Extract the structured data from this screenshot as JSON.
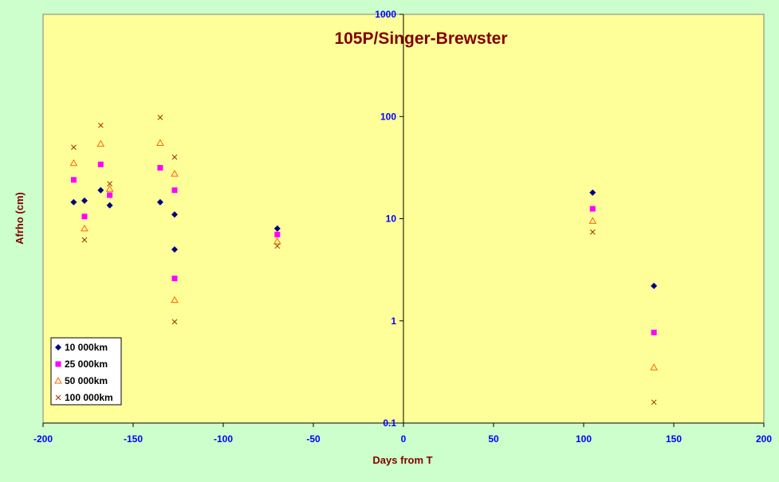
{
  "chart_data": {
    "type": "scatter",
    "title": "105P/Singer-Brewster",
    "xlabel": "Days from T",
    "ylabel": "Afrho (cm)",
    "xlim": [
      -200,
      200
    ],
    "ylim": [
      0.1,
      1000
    ],
    "yscale": "log",
    "x_ticks": [
      "-200",
      "-150",
      "-100",
      "-50",
      "0",
      "50",
      "100",
      "150",
      "200"
    ],
    "x_tick_values": [
      -200,
      -150,
      -100,
      -50,
      0,
      50,
      100,
      150,
      200
    ],
    "y_ticks": [
      "0.1",
      "1",
      "10",
      "100",
      "1000"
    ],
    "y_tick_values": [
      0.1,
      1,
      10,
      100,
      1000
    ],
    "grid": false,
    "legend_position": "bottom-left",
    "colors": {
      "plot_background": "#ffff99",
      "page_background": "#ccffcc",
      "title": "#800000",
      "axis_title": "#800000",
      "tick_label": "#0000ff"
    },
    "series": [
      {
        "name": "10 000km",
        "marker": "diamond",
        "color": "#000080",
        "points": [
          [
            -183,
            14.5
          ],
          [
            -177,
            15
          ],
          [
            -168,
            19
          ],
          [
            -163,
            13.5
          ],
          [
            -135,
            14.5
          ],
          [
            -127,
            11
          ],
          [
            -127,
            5
          ],
          [
            -70,
            8
          ],
          [
            105,
            18
          ],
          [
            139,
            2.2
          ]
        ]
      },
      {
        "name": "25 000km",
        "marker": "square",
        "color": "#ff00ff",
        "points": [
          [
            -183,
            24
          ],
          [
            -177,
            10.5
          ],
          [
            -168,
            34
          ],
          [
            -163,
            17
          ],
          [
            -135,
            31.5
          ],
          [
            -127,
            19
          ],
          [
            -127,
            2.6
          ],
          [
            -70,
            7
          ],
          [
            105,
            12.5
          ],
          [
            139,
            0.77
          ]
        ]
      },
      {
        "name": "50 000km",
        "marker": "triangle",
        "color": "#ff6600",
        "points": [
          [
            -183,
            35
          ],
          [
            -177,
            8
          ],
          [
            -168,
            54
          ],
          [
            -163,
            19.5
          ],
          [
            -135,
            55
          ],
          [
            -127,
            27.5
          ],
          [
            -127,
            1.6
          ],
          [
            -70,
            6
          ],
          [
            105,
            9.5
          ],
          [
            139,
            0.35
          ]
        ]
      },
      {
        "name": "100 000km",
        "marker": "x",
        "color": "#993300",
        "points": [
          [
            -183,
            50
          ],
          [
            -177,
            6.2
          ],
          [
            -168,
            82
          ],
          [
            -163,
            22
          ],
          [
            -135,
            98
          ],
          [
            -127,
            40
          ],
          [
            -127,
            0.98
          ],
          [
            -70,
            5.4
          ],
          [
            105,
            7.4
          ],
          [
            139,
            0.16
          ]
        ]
      }
    ]
  }
}
